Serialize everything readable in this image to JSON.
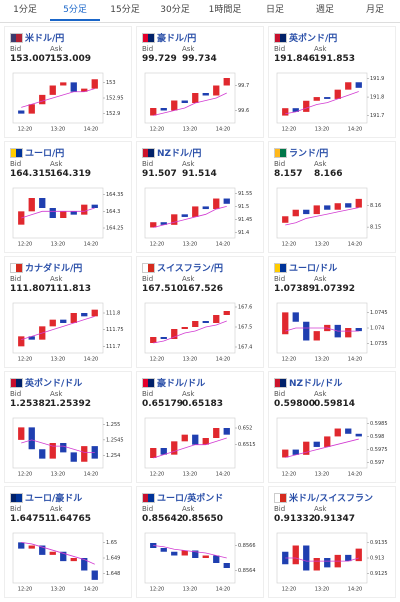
{
  "tabs": [
    "1分足",
    "5分足",
    "15分足",
    "30分足",
    "1時間足",
    "日足",
    "週足",
    "月足"
  ],
  "active_tab": 1,
  "panels": [
    {
      "name": "米ドル/円",
      "bid_label": "Bid",
      "ask_label": "Ask",
      "bid": "153.007",
      "ask": "153.009",
      "chart": {
        "ylim": [
          152.87,
          153.03
        ],
        "yticks": [
          152.95,
          153,
          152.9
        ],
        "xticks": [
          "12:20",
          "13:20",
          "14:20"
        ],
        "candles": [
          [
            152.91,
            152.9
          ],
          [
            152.9,
            152.93
          ],
          [
            152.93,
            152.96
          ],
          [
            152.96,
            152.99
          ],
          [
            152.99,
            153.0
          ],
          [
            153.0,
            152.97
          ],
          [
            152.97,
            152.98
          ],
          [
            152.98,
            153.01
          ]
        ],
        "ma": [
          152.92,
          152.93,
          152.94,
          152.95,
          152.96,
          152.97,
          152.97,
          152.98
        ]
      }
    },
    {
      "name": "豪ドル/円",
      "bid_label": "Bid",
      "ask_label": "Ask",
      "bid": "99.729",
      "ask": "99.734",
      "chart": {
        "ylim": [
          99.55,
          99.75
        ],
        "yticks": [
          99.7,
          99.6
        ],
        "xticks": [
          "12:20",
          "13:20",
          "14:20"
        ],
        "candles": [
          [
            99.58,
            99.61
          ],
          [
            99.61,
            99.6
          ],
          [
            99.6,
            99.64
          ],
          [
            99.64,
            99.63
          ],
          [
            99.63,
            99.67
          ],
          [
            99.67,
            99.66
          ],
          [
            99.66,
            99.7
          ],
          [
            99.7,
            99.73
          ]
        ],
        "ma": [
          99.58,
          99.59,
          99.6,
          99.61,
          99.63,
          99.64,
          99.65,
          99.67
        ]
      }
    },
    {
      "name": "英ポンド/円",
      "bid_label": "Bid",
      "ask_label": "Ask",
      "bid": "191.846",
      "ask": "191.853",
      "chart": {
        "ylim": [
          191.66,
          191.93
        ],
        "yticks": [
          191.9,
          191.8,
          191.7
        ],
        "xticks": [
          "12:20",
          "13:20",
          "14:20"
        ],
        "candles": [
          [
            191.7,
            191.74
          ],
          [
            191.74,
            191.72
          ],
          [
            191.72,
            191.78
          ],
          [
            191.78,
            191.8
          ],
          [
            191.8,
            191.79
          ],
          [
            191.79,
            191.84
          ],
          [
            191.84,
            191.88
          ],
          [
            191.88,
            191.85
          ]
        ],
        "ma": [
          191.71,
          191.72,
          191.74,
          191.76,
          191.77,
          191.79,
          191.81,
          191.83
        ]
      }
    },
    {
      "name": "ユーロ/円",
      "bid_label": "Bid",
      "ask_label": "Ask",
      "bid": "164.315",
      "ask": "164.319",
      "chart": {
        "ylim": [
          164.22,
          164.37
        ],
        "yticks": [
          164.35,
          164.3,
          164.25
        ],
        "xticks": [
          "12:20",
          "13:20",
          "14:20"
        ],
        "candles": [
          [
            164.26,
            164.3
          ],
          [
            164.3,
            164.34
          ],
          [
            164.34,
            164.31
          ],
          [
            164.31,
            164.28
          ],
          [
            164.28,
            164.3
          ],
          [
            164.3,
            164.29
          ],
          [
            164.29,
            164.32
          ],
          [
            164.32,
            164.31
          ]
        ],
        "ma": [
          164.28,
          164.29,
          164.3,
          164.3,
          164.3,
          164.3,
          164.3,
          164.31
        ]
      }
    },
    {
      "name": "NZドル/円",
      "bid_label": "Bid",
      "ask_label": "Ask",
      "bid": "91.507",
      "ask": "91.514",
      "chart": {
        "ylim": [
          91.38,
          91.57
        ],
        "yticks": [
          91.55,
          91.5,
          91.45,
          91.4
        ],
        "xticks": [
          "12:20",
          "13:20",
          "14:20"
        ],
        "candles": [
          [
            91.42,
            91.44
          ],
          [
            91.44,
            91.43
          ],
          [
            91.43,
            91.47
          ],
          [
            91.47,
            91.46
          ],
          [
            91.46,
            91.5
          ],
          [
            91.5,
            91.49
          ],
          [
            91.49,
            91.53
          ],
          [
            91.53,
            91.51
          ]
        ],
        "ma": [
          91.42,
          91.43,
          91.44,
          91.45,
          91.46,
          91.47,
          91.49,
          91.5
        ]
      }
    },
    {
      "name": "ランド/円",
      "bid_label": "Bid",
      "ask_label": "Ask",
      "bid": "8.157",
      "ask": "8.166",
      "chart": {
        "ylim": [
          8.145,
          8.168
        ],
        "yticks": [
          8.16,
          8.15
        ],
        "xticks": [
          "12:20",
          "13:20",
          "14:20"
        ],
        "candles": [
          [
            8.152,
            8.155
          ],
          [
            8.155,
            8.158
          ],
          [
            8.158,
            8.156
          ],
          [
            8.156,
            8.16
          ],
          [
            8.16,
            8.158
          ],
          [
            8.158,
            8.161
          ],
          [
            8.161,
            8.159
          ],
          [
            8.159,
            8.163
          ]
        ],
        "ma": [
          8.151,
          8.152,
          8.154,
          8.155,
          8.156,
          8.157,
          8.158,
          8.159
        ]
      }
    },
    {
      "name": "カナダドル/円",
      "bid_label": "Bid",
      "ask_label": "Ask",
      "bid": "111.807",
      "ask": "111.813",
      "chart": {
        "ylim": [
          111.68,
          111.83
        ],
        "yticks": [
          111.8,
          111.75,
          111.7
        ],
        "xticks": [
          "12:20",
          "13:20",
          "14:20"
        ],
        "candles": [
          [
            111.7,
            111.73
          ],
          [
            111.73,
            111.72
          ],
          [
            111.72,
            111.76
          ],
          [
            111.76,
            111.78
          ],
          [
            111.78,
            111.77
          ],
          [
            111.77,
            111.8
          ],
          [
            111.8,
            111.79
          ],
          [
            111.79,
            111.81
          ]
        ],
        "ma": [
          111.72,
          111.73,
          111.74,
          111.75,
          111.76,
          111.77,
          111.78,
          111.79
        ]
      }
    },
    {
      "name": "スイスフラン/円",
      "bid_label": "Bid",
      "ask_label": "Ask",
      "bid": "167.510",
      "ask": "167.526",
      "chart": {
        "ylim": [
          167.37,
          167.62
        ],
        "yticks": [
          167.6,
          167.5,
          167.4
        ],
        "xticks": [
          "12:20",
          "13:20",
          "14:20"
        ],
        "candles": [
          [
            167.42,
            167.45
          ],
          [
            167.45,
            167.44
          ],
          [
            167.44,
            167.49
          ],
          [
            167.49,
            167.5
          ],
          [
            167.5,
            167.53
          ],
          [
            167.53,
            167.52
          ],
          [
            167.52,
            167.56
          ],
          [
            167.56,
            167.58
          ]
        ],
        "ma": [
          167.42,
          167.43,
          167.45,
          167.47,
          167.48,
          167.5,
          167.51,
          167.53
        ]
      }
    },
    {
      "name": "ユーロ/ドル",
      "bid_label": "Bid",
      "ask_label": "Ask",
      "bid": "1.07389",
      "ask": "1.07392",
      "chart": {
        "ylim": [
          1.0732,
          1.0748
        ],
        "yticks": [
          1.0745,
          1.074,
          1.0735
        ],
        "xticks": [
          "12:20",
          "13:20",
          "14:20"
        ],
        "candles": [
          [
            1.0738,
            1.0745
          ],
          [
            1.0745,
            1.0742
          ],
          [
            1.0742,
            1.0736
          ],
          [
            1.0736,
            1.0739
          ],
          [
            1.0739,
            1.0741
          ],
          [
            1.0741,
            1.0737
          ],
          [
            1.0737,
            1.074
          ],
          [
            1.074,
            1.0739
          ]
        ],
        "ma": [
          1.0739,
          1.074,
          1.074,
          1.074,
          1.074,
          1.0739,
          1.0739,
          1.0739
        ]
      }
    },
    {
      "name": "英ポンド/ドル",
      "bid_label": "Bid",
      "ask_label": "Ask",
      "bid": "1.25382",
      "ask": "1.25392",
      "chart": {
        "ylim": [
          1.2536,
          1.2552
        ],
        "yticks": [
          1.255,
          1.2545,
          1.254
        ],
        "xticks": [
          "12:20",
          "13:20",
          "14:20"
        ],
        "candles": [
          [
            1.2545,
            1.2549
          ],
          [
            1.2549,
            1.2542
          ],
          [
            1.2542,
            1.2539
          ],
          [
            1.2539,
            1.2544
          ],
          [
            1.2544,
            1.2541
          ],
          [
            1.2541,
            1.2538
          ],
          [
            1.2538,
            1.2543
          ],
          [
            1.2543,
            1.2539
          ]
        ],
        "ma": [
          1.2544,
          1.2545,
          1.2544,
          1.2543,
          1.2543,
          1.2542,
          1.2541,
          1.2541
        ]
      }
    },
    {
      "name": "豪ドル/ドル",
      "bid_label": "Bid",
      "ask_label": "Ask",
      "bid": "0.65179",
      "ask": "0.65183",
      "chart": {
        "ylim": [
          0.6508,
          0.6523
        ],
        "yticks": [
          0.652,
          0.6515
        ],
        "xticks": [
          "12:20",
          "13:20",
          "14:20"
        ],
        "candles": [
          [
            0.6511,
            0.6514
          ],
          [
            0.6514,
            0.6512
          ],
          [
            0.6512,
            0.6516
          ],
          [
            0.6516,
            0.6518
          ],
          [
            0.6518,
            0.6515
          ],
          [
            0.6515,
            0.6517
          ],
          [
            0.6517,
            0.652
          ],
          [
            0.652,
            0.6518
          ]
        ],
        "ma": [
          0.6511,
          0.6512,
          0.6513,
          0.6514,
          0.6515,
          0.6515,
          0.6516,
          0.6517
        ]
      }
    },
    {
      "name": "NZドル/ドル",
      "bid_label": "Bid",
      "ask_label": "Ask",
      "bid": "0.59800",
      "ask": "0.59814",
      "chart": {
        "ylim": [
          0.5968,
          0.5987
        ],
        "yticks": [
          0.5985,
          0.598,
          0.5975,
          0.597
        ],
        "xticks": [
          "12:20",
          "13:20",
          "14:20"
        ],
        "candles": [
          [
            0.5972,
            0.5975
          ],
          [
            0.5975,
            0.5973
          ],
          [
            0.5973,
            0.5978
          ],
          [
            0.5978,
            0.5976
          ],
          [
            0.5976,
            0.598
          ],
          [
            0.598,
            0.5983
          ],
          [
            0.5983,
            0.5981
          ],
          [
            0.5981,
            0.598
          ]
        ],
        "ma": [
          0.5972,
          0.5973,
          0.5974,
          0.5975,
          0.5976,
          0.5977,
          0.5978,
          0.5979
        ]
      }
    },
    {
      "name": "ユーロ/豪ドル",
      "bid_label": "Bid",
      "ask_label": "Ask",
      "bid": "1.64751",
      "ask": "1.64765",
      "chart": {
        "ylim": [
          1.6474,
          1.6506
        ],
        "yticks": [
          1.65,
          1.649,
          1.648
        ],
        "xticks": [
          "12:20",
          "13:20",
          "14:20"
        ],
        "candles": [
          [
            1.65,
            1.6496
          ],
          [
            1.6496,
            1.6498
          ],
          [
            1.6498,
            1.6492
          ],
          [
            1.6492,
            1.6494
          ],
          [
            1.6494,
            1.6488
          ],
          [
            1.6488,
            1.649
          ],
          [
            1.649,
            1.6482
          ],
          [
            1.6482,
            1.6476
          ]
        ],
        "ma": [
          1.65,
          1.6499,
          1.6497,
          1.6495,
          1.6493,
          1.6491,
          1.6489,
          1.6486
        ]
      }
    },
    {
      "name": "ユーロ/英ポンド",
      "bid_label": "Bid",
      "ask_label": "Ask",
      "bid": "0.85642",
      "ask": "0.85650",
      "chart": {
        "ylim": [
          0.8563,
          0.8567
        ],
        "yticks": [
          0.8566,
          0.8564
        ],
        "xticks": [
          "12:20",
          "13:20",
          "14:20"
        ],
        "candles": [
          [
            0.85662,
            0.85658
          ],
          [
            0.85658,
            0.85655
          ],
          [
            0.85655,
            0.85652
          ],
          [
            0.85652,
            0.85656
          ],
          [
            0.85656,
            0.8565
          ],
          [
            0.8565,
            0.85652
          ],
          [
            0.85652,
            0.85646
          ],
          [
            0.85646,
            0.85642
          ]
        ],
        "ma": [
          0.8566,
          0.85659,
          0.85657,
          0.85656,
          0.85655,
          0.85654,
          0.85652,
          0.8565
        ]
      }
    },
    {
      "name": "米ドル/スイスフラン",
      "bid_label": "Bid",
      "ask_label": "Ask",
      "bid": "0.91332",
      "ask": "0.91347",
      "chart": {
        "ylim": [
          0.9122,
          0.9138
        ],
        "yticks": [
          0.9135,
          0.913,
          0.9125
        ],
        "xticks": [
          "12:20",
          "13:20",
          "14:20"
        ],
        "candles": [
          [
            0.9132,
            0.9128
          ],
          [
            0.9128,
            0.9134
          ],
          [
            0.9134,
            0.9126
          ],
          [
            0.9126,
            0.913
          ],
          [
            0.913,
            0.9127
          ],
          [
            0.9127,
            0.9131
          ],
          [
            0.9131,
            0.9129
          ],
          [
            0.9129,
            0.9133
          ]
        ],
        "ma": [
          0.913,
          0.913,
          0.9129,
          0.9129,
          0.9129,
          0.9129,
          0.9129,
          0.913
        ]
      }
    }
  ]
}
